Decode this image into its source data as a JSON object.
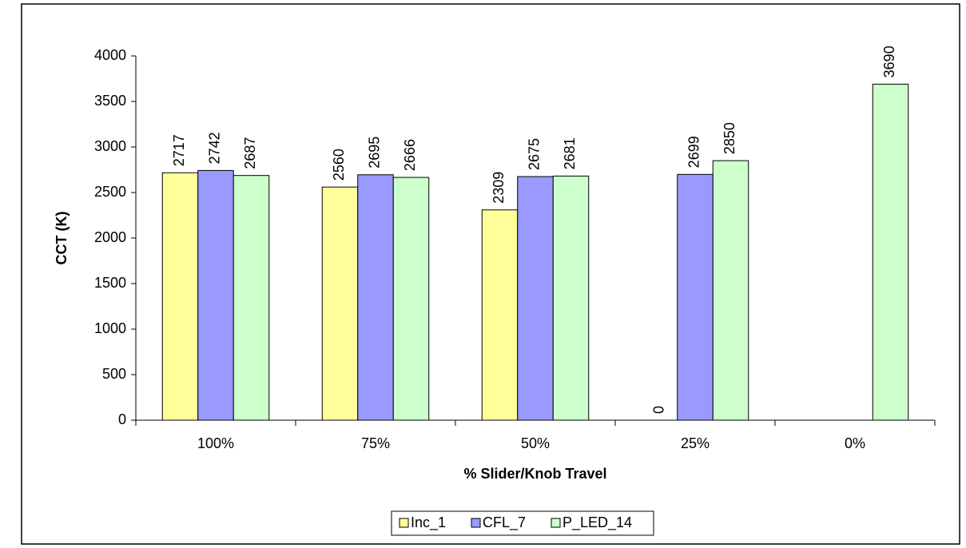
{
  "chart_data": {
    "type": "bar",
    "y_label": "CCT (K)",
    "x_label": "% Slider/Knob Travel",
    "categories": [
      "100%",
      "75%",
      "50%",
      "25%",
      "0%"
    ],
    "series": [
      {
        "name": "Inc_1",
        "color": "#ffff99",
        "values": [
          2717,
          2560,
          2309,
          0,
          null
        ]
      },
      {
        "name": "CFL_7",
        "color": "#9999ff",
        "values": [
          2742,
          2695,
          2675,
          2699,
          null
        ]
      },
      {
        "name": "P_LED_14",
        "color": "#ccffcc",
        "values": [
          2687,
          2666,
          2681,
          2850,
          3690
        ]
      }
    ],
    "ylim": [
      0,
      4000
    ],
    "yticks": [
      0,
      500,
      1000,
      1500,
      2000,
      2500,
      3000,
      3500,
      4000
    ],
    "grid": false,
    "legend": "bottom"
  }
}
